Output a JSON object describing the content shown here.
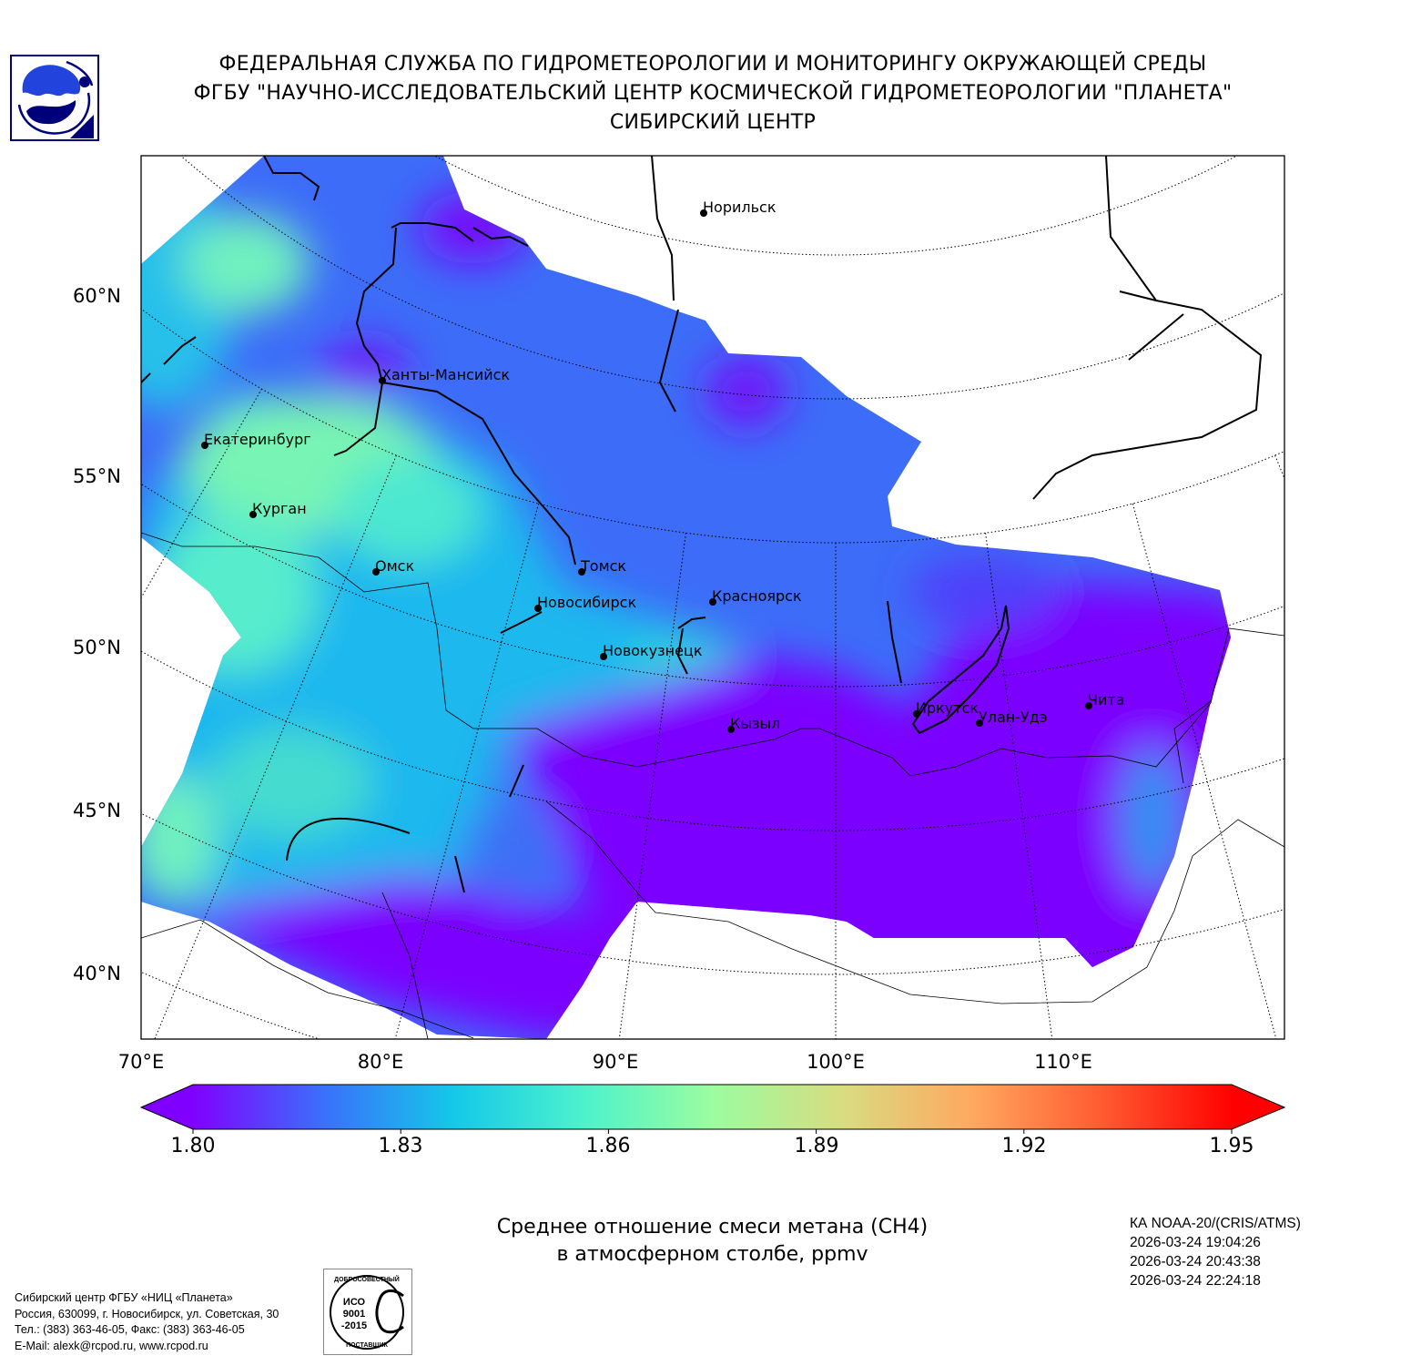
{
  "header": {
    "line1": "ФЕДЕРАЛЬНАЯ СЛУЖБА ПО ГИДРОМЕТЕОРОЛОГИИ И МОНИТОРИНГУ ОКРУЖАЮЩЕЙ СРЕДЫ",
    "line2": "ФГБУ \"НАУЧНО-ИССЛЕДОВАТЕЛЬСКИЙ ЦЕНТР КОСМИЧЕСКОЙ ГИДРОМЕТЕОРОЛОГИИ \"ПЛАНЕТА\"",
    "line3": "СИБИРСКИЙ ЦЕНТР"
  },
  "map": {
    "lat_labels": [
      "60°N",
      "55°N",
      "50°N",
      "45°N",
      "40°N"
    ],
    "lon_labels": [
      "70°E",
      "80°E",
      "90°E",
      "100°E",
      "110°E"
    ],
    "cities": [
      {
        "name": "Норильск"
      },
      {
        "name": "Ханты-Мансийск"
      },
      {
        "name": "Екатеринбург"
      },
      {
        "name": "Курган"
      },
      {
        "name": "Омск"
      },
      {
        "name": "Томск"
      },
      {
        "name": "Новосибирск"
      },
      {
        "name": "Красноярск"
      },
      {
        "name": "Новокузнецк"
      },
      {
        "name": "Кызыл"
      },
      {
        "name": "Иркутск"
      },
      {
        "name": "Улан-Удэ"
      },
      {
        "name": "Чита"
      }
    ],
    "colors": {
      "low": "#8000ff",
      "mid": "#00b4f0",
      "high": "#80ffa8"
    }
  },
  "colorbar": {
    "ticks": [
      "1.80",
      "1.83",
      "1.86",
      "1.89",
      "1.92",
      "1.95"
    ],
    "min": 1.8,
    "max": 1.95,
    "colors": [
      "#8000ff",
      "#3b6ffb",
      "#14c8e8",
      "#4cf2cc",
      "#9cfca0",
      "#d8dc80",
      "#ffa860",
      "#ff5a30",
      "#ff0000"
    ]
  },
  "title": {
    "line1": "Среднее отношение смеси метана (CH4)",
    "line2": "в атмосферном столбе, ppmv"
  },
  "satellite": {
    "instrument": "КА NOAA-20/(CRIS/ATMS)",
    "times": [
      "2026-03-24 19:04:26",
      "2026-03-24 20:43:38",
      "2026-03-24 22:24:18"
    ]
  },
  "footer": {
    "address_lines": [
      "Сибирский центр ФГБУ «НИЦ «Планета»",
      "Россия, 630099, г. Новосибирск, ул. Советская, 30",
      "Тел.: (383) 363-46-05, Факс: (383) 363-46-05",
      "E-Mail: alexk@rcpod.ru, www.rcpod.ru"
    ],
    "iso_logo": {
      "top": "ДОБРОСОВЕСТНЫЙ",
      "middle": "ИСО 9001 -2015",
      "bottom": "ПОСТАВЩИК"
    }
  }
}
